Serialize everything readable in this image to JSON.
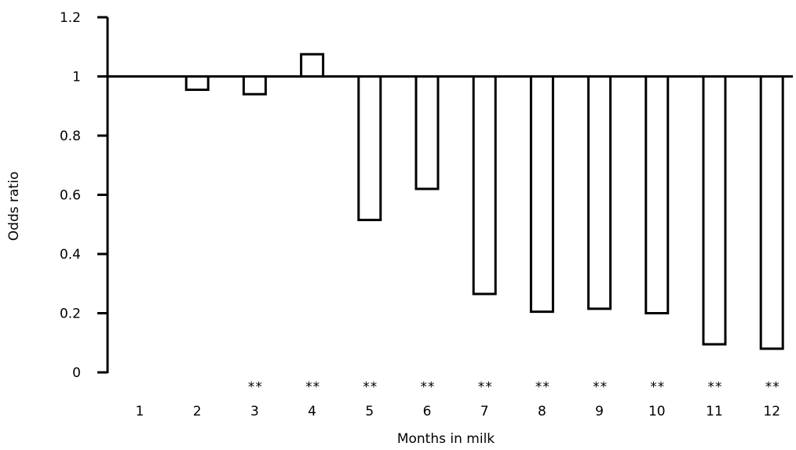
{
  "chart_data": {
    "type": "bar",
    "title": "",
    "xlabel": "Months in milk",
    "ylabel": "Odds ratio",
    "ylim": [
      0,
      1.2
    ],
    "y_ticks": [
      "0",
      "0.2",
      "0.4",
      "0.6",
      "0.8",
      "1",
      "1.2"
    ],
    "baseline": 1,
    "categories": [
      "1",
      "2",
      "3",
      "4",
      "5",
      "6",
      "7",
      "8",
      "9",
      "10",
      "11",
      "12"
    ],
    "values": [
      1.0,
      0.955,
      0.94,
      1.075,
      0.515,
      0.62,
      0.265,
      0.205,
      0.215,
      0.2,
      0.095,
      0.08
    ],
    "significance": [
      "",
      "",
      "**",
      "**",
      "**",
      "**",
      "**",
      "**",
      "**",
      "**",
      "**",
      "**"
    ],
    "grid": false,
    "legend": "none",
    "colors": {
      "bar_fill": "#ffffff",
      "bar_stroke": "#000000",
      "axis": "#000000"
    }
  }
}
